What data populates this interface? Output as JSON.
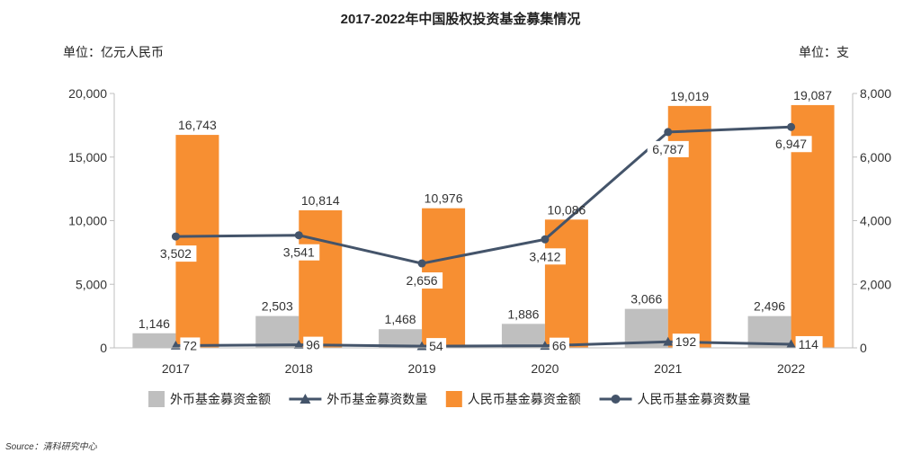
{
  "header": {
    "title": "2017-2022年中国股权投资基金募集情况",
    "unit_left": "单位：亿元人民币",
    "unit_right": "单位：支"
  },
  "source": "Source：清科研究中心",
  "colors": {
    "foreign_amount": "#bfbfbf",
    "rmb_amount": "#f78f32",
    "foreign_count": "#44546a",
    "rmb_count": "#44546a"
  },
  "chart_data": {
    "type": "bar",
    "title": "2017-2022年中国股权投资基金募集情况",
    "categories": [
      "2017",
      "2018",
      "2019",
      "2020",
      "2021",
      "2022"
    ],
    "y_left": {
      "label": "单位：亿元人民币",
      "lim": [
        0,
        20000
      ],
      "ticks": [
        "0",
        "5,000",
        "10,000",
        "15,000",
        "20,000"
      ],
      "tick_values": [
        0,
        5000,
        10000,
        15000,
        20000
      ]
    },
    "y_right": {
      "label": "单位：支",
      "lim": [
        0,
        8000
      ],
      "ticks": [
        "0",
        "2,000",
        "4,000",
        "6,000",
        "8,000"
      ],
      "tick_values": [
        0,
        2000,
        4000,
        6000,
        8000
      ]
    },
    "series": [
      {
        "name": "外币基金募资金额",
        "kind": "bar",
        "axis": "left",
        "values": [
          1146,
          2503,
          1468,
          1886,
          3066,
          2496
        ],
        "labels": [
          "1,146",
          "2,503",
          "1,468",
          "1,886",
          "3,066",
          "2,496"
        ]
      },
      {
        "name": "外币基金募资数量",
        "kind": "line",
        "marker": "triangle",
        "axis": "right",
        "values": [
          72,
          96,
          54,
          66,
          192,
          114
        ],
        "labels": [
          "72",
          "96",
          "54",
          "66",
          "192",
          "114"
        ]
      },
      {
        "name": "人民币基金募资金额",
        "kind": "bar",
        "axis": "left",
        "values": [
          16743,
          10814,
          10976,
          10086,
          19019,
          19087
        ],
        "labels": [
          "16,743",
          "10,814",
          "10,976",
          "10,086",
          "19,019",
          "19,087"
        ]
      },
      {
        "name": "人民币基金募资数量",
        "kind": "line",
        "marker": "circle",
        "axis": "right",
        "values": [
          3502,
          3541,
          2656,
          3412,
          6787,
          6947
        ],
        "labels": [
          "3,502",
          "3,541",
          "2,656",
          "3,412",
          "6,787",
          "6,947"
        ]
      }
    ],
    "legend_position": "bottom",
    "grid": false
  }
}
